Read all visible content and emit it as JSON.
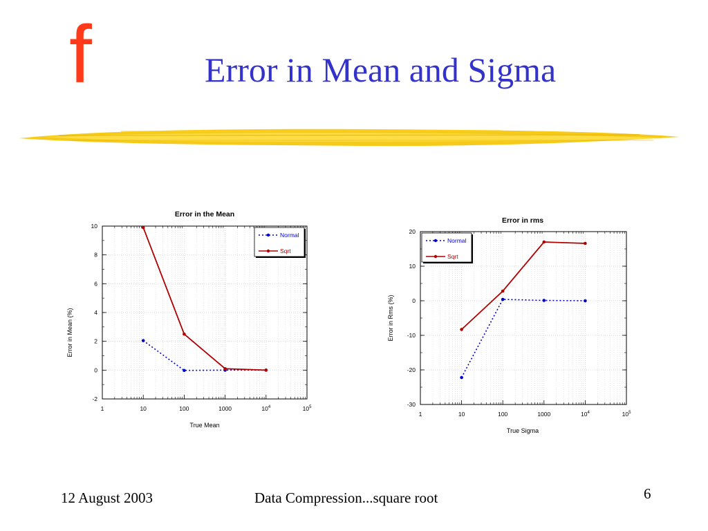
{
  "slide": {
    "logo_text": "f",
    "title": "Error in Mean and Sigma",
    "footer_date": "12 August 2003",
    "footer_center": "Data Compression...square root",
    "page_number": "6",
    "colors": {
      "title": "#3333cc",
      "logo": "#ff3a1a",
      "stroke": "#f5c400",
      "normal_series": "#0000cc",
      "sqrt_series": "#b00000"
    }
  },
  "chart_data": [
    {
      "type": "line",
      "title": "Error in the Mean",
      "xlabel": "True Mean",
      "ylabel": "Error in Mean (%)",
      "x_scale": "log",
      "xlim": [
        1,
        100000
      ],
      "ylim": [
        -2,
        10
      ],
      "x_ticks": [
        "1",
        "10",
        "100",
        "1000",
        "10^4",
        "10^5"
      ],
      "y_ticks": [
        "-2",
        "0",
        "2",
        "4",
        "6",
        "8",
        "10"
      ],
      "x": [
        10,
        100,
        1000,
        10000
      ],
      "grid": true,
      "legend_position": "top-right",
      "series": [
        {
          "name": "Normal",
          "style": "dotted",
          "color": "#0000cc",
          "values": [
            2.05,
            -0.02,
            0.0,
            0.0
          ]
        },
        {
          "name": "Sqrt",
          "style": "solid",
          "color": "#b00000",
          "values": [
            9.9,
            2.5,
            0.1,
            0.0
          ]
        }
      ]
    },
    {
      "type": "line",
      "title": "Error in rms",
      "xlabel": "True Sigma",
      "ylabel": "Error in Rms (%)",
      "x_scale": "log",
      "xlim": [
        1,
        100000
      ],
      "ylim": [
        -30,
        20
      ],
      "x_ticks": [
        "1",
        "10",
        "100",
        "1000",
        "10^4",
        "10^5"
      ],
      "y_ticks": [
        "-30",
        "-20",
        "-10",
        "0",
        "10",
        "20"
      ],
      "x": [
        10,
        100,
        1000,
        10000
      ],
      "grid": true,
      "legend_position": "top-left",
      "series": [
        {
          "name": "Normal",
          "style": "dotted",
          "color": "#0000cc",
          "values": [
            -22.2,
            0.4,
            0.1,
            0.0
          ]
        },
        {
          "name": "Sqrt",
          "style": "solid",
          "color": "#b00000",
          "values": [
            -8.3,
            2.8,
            17.0,
            16.6
          ]
        }
      ]
    }
  ]
}
